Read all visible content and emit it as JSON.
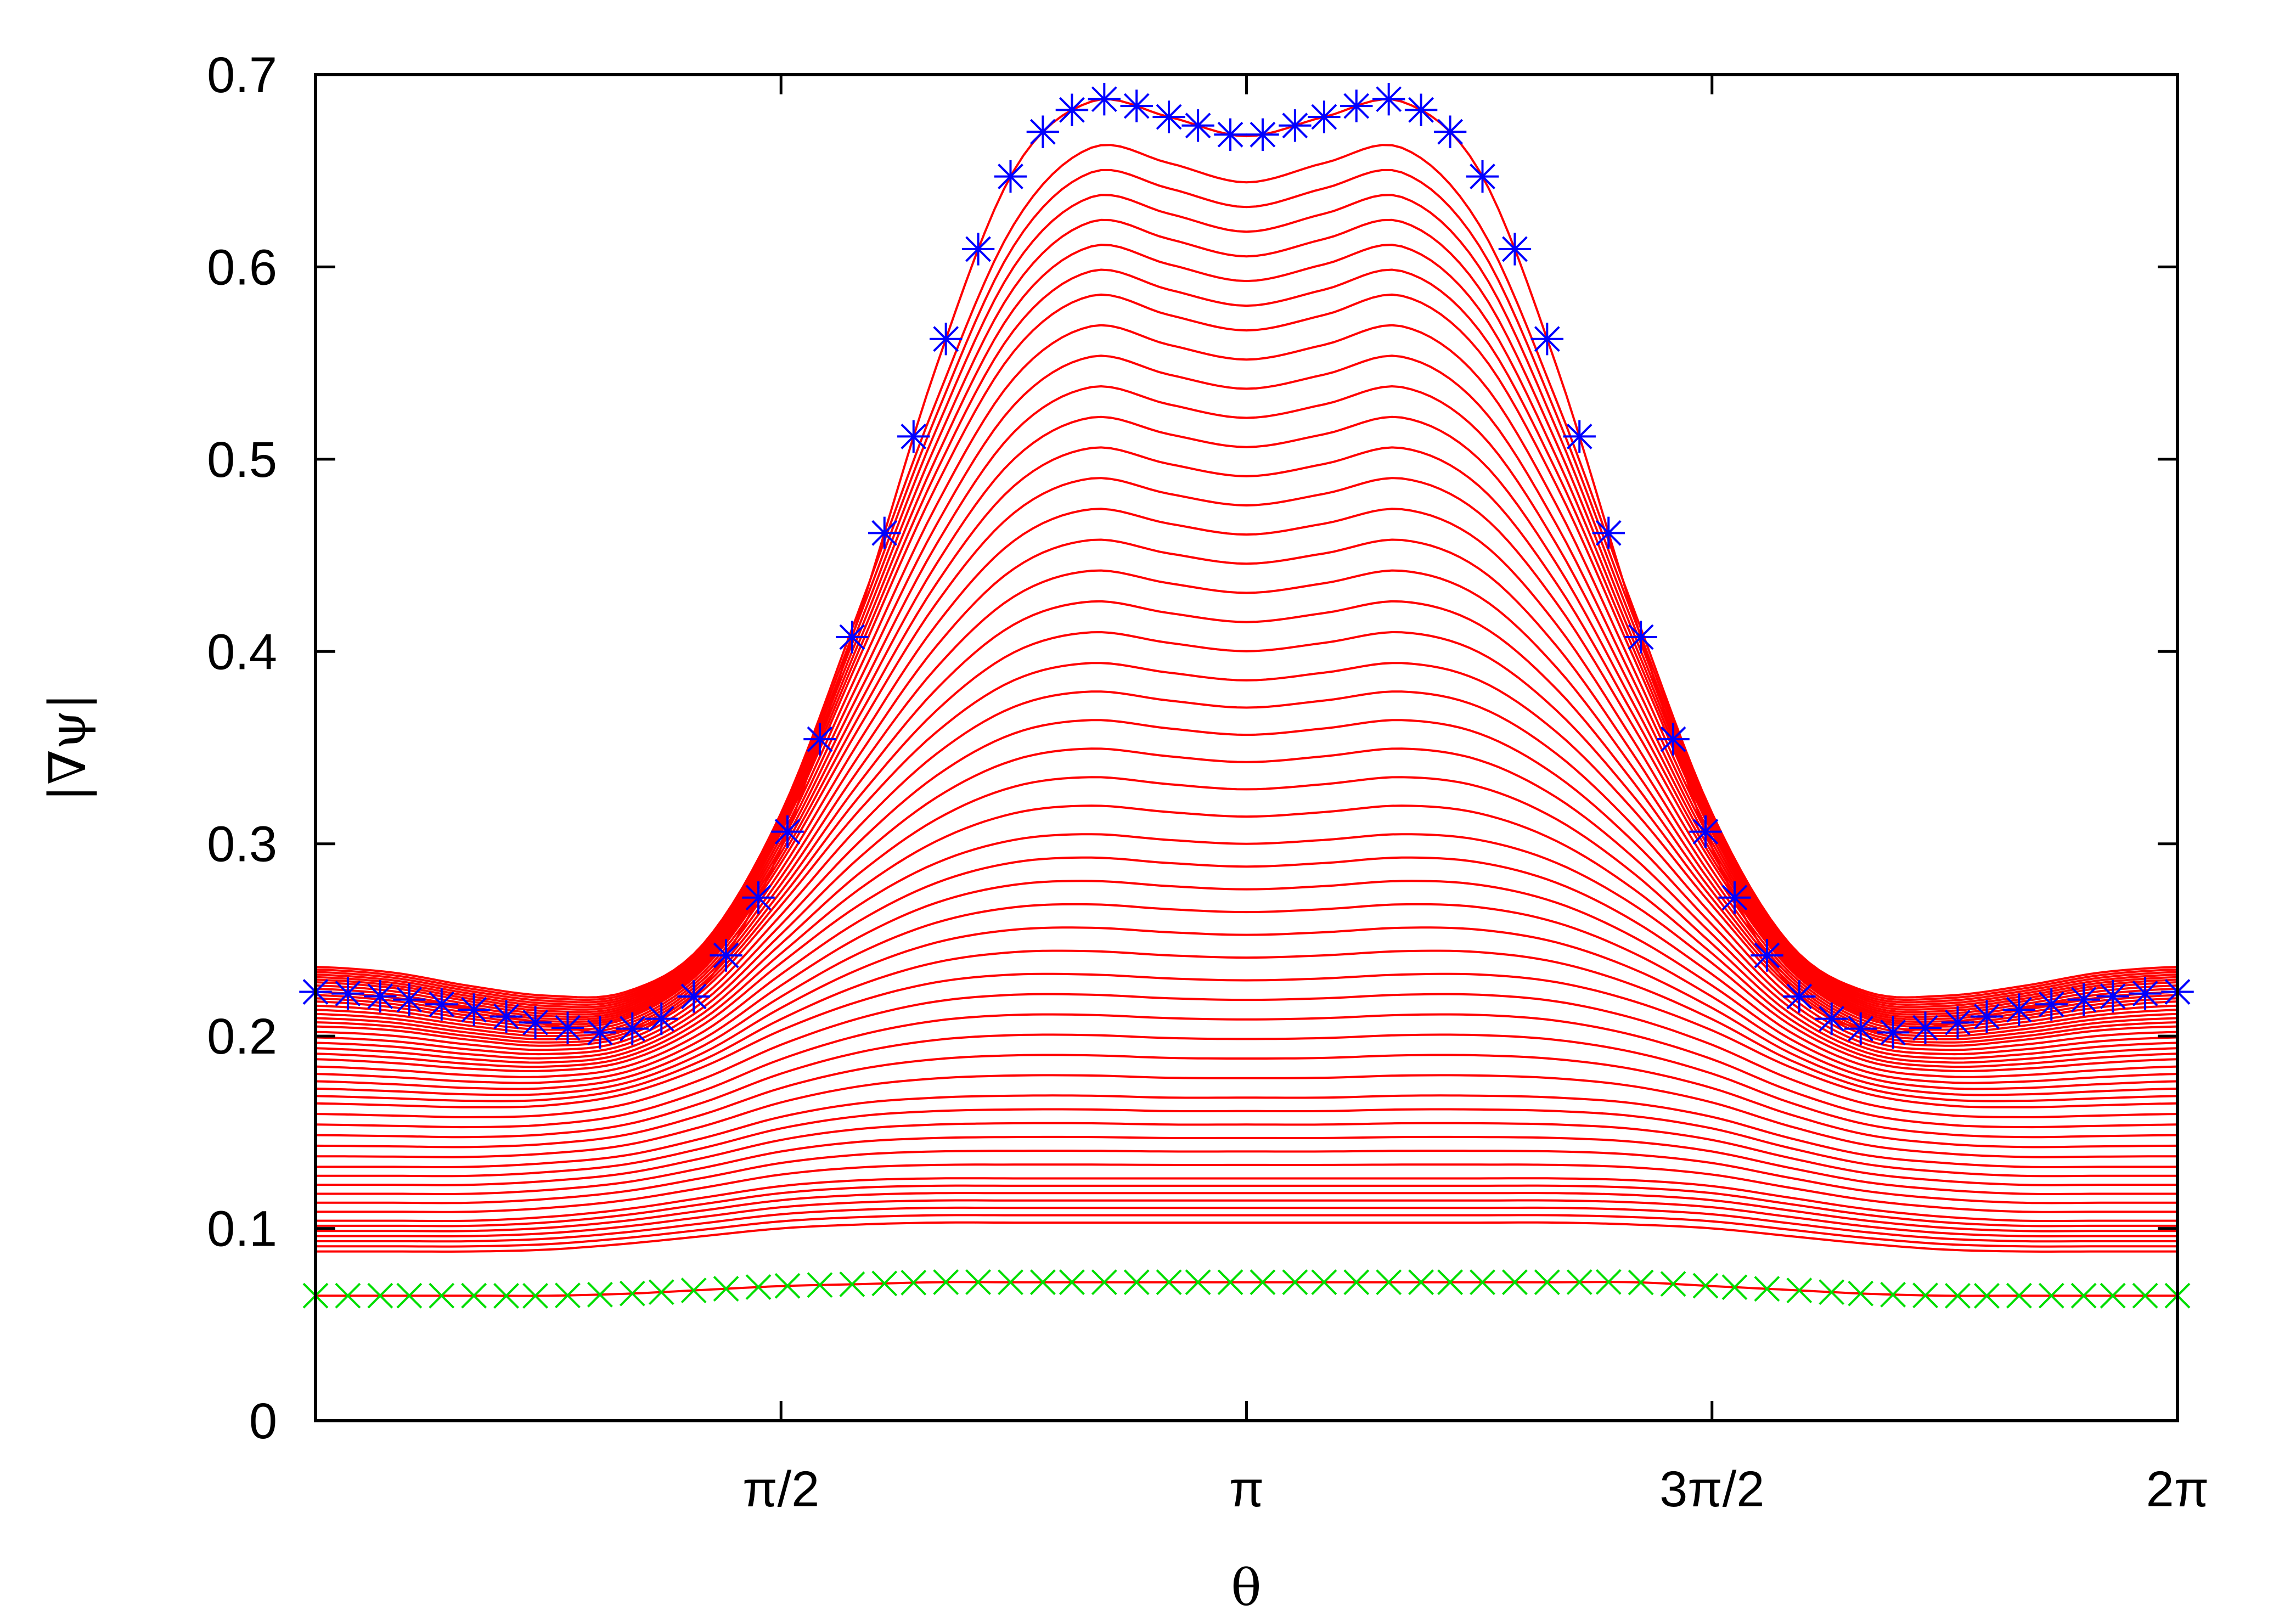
{
  "chart_data": {
    "type": "line",
    "title": "",
    "xlabel": "θ",
    "ylabel": "|∇ψ|",
    "xlim": [
      0,
      6.283185
    ],
    "ylim": [
      0,
      0.7
    ],
    "grid": false,
    "legend": "none",
    "x_ticks": [
      {
        "value": 1.570796,
        "label": "π/2"
      },
      {
        "value": 3.141593,
        "label": "π"
      },
      {
        "value": 4.712389,
        "label": "3π/2"
      },
      {
        "value": 6.283185,
        "label": "2π"
      }
    ],
    "y_ticks": [
      {
        "value": 0,
        "label": "0"
      },
      {
        "value": 0.1,
        "label": "0.1"
      },
      {
        "value": 0.2,
        "label": "0.2"
      },
      {
        "value": 0.3,
        "label": "0.3"
      },
      {
        "value": 0.4,
        "label": "0.4"
      },
      {
        "value": 0.5,
        "label": "0.5"
      },
      {
        "value": 0.6,
        "label": "0.6"
      },
      {
        "value": 0.7,
        "label": "0.7"
      }
    ],
    "x": [
      0,
      0.2618,
      0.5236,
      0.7854,
      1.0472,
      1.309,
      1.5708,
      1.8326,
      2.0944,
      2.3562,
      2.618,
      2.8798,
      3.1416,
      3.4034,
      3.6652,
      3.927,
      4.1888,
      4.4506,
      4.7124,
      4.9742,
      5.236,
      5.4978,
      5.7596,
      6.0214,
      6.2832
    ],
    "series_style": {
      "initial": {
        "color": "#00dd00",
        "marker": "x"
      },
      "intermediate": {
        "color": "#ff0000",
        "marker": "none"
      },
      "final": {
        "color": "#0000ff",
        "marker": "*"
      }
    },
    "series": [
      {
        "role": "initial",
        "values": [
          0.065,
          0.065,
          0.065,
          0.065,
          0.066,
          0.068,
          0.07,
          0.071,
          0.072,
          0.072,
          0.072,
          0.072,
          0.072,
          0.072,
          0.072,
          0.072,
          0.072,
          0.072,
          0.07,
          0.068,
          0.066,
          0.065,
          0.065,
          0.065,
          0.065
        ]
      },
      {
        "role": "intermediate",
        "values": [
          0.088,
          0.088,
          0.088,
          0.089,
          0.092,
          0.096,
          0.1,
          0.102,
          0.103,
          0.103,
          0.103,
          0.103,
          0.103,
          0.103,
          0.103,
          0.103,
          0.103,
          0.102,
          0.1,
          0.096,
          0.092,
          0.089,
          0.088,
          0.088,
          0.088
        ]
      },
      {
        "role": "intermediate",
        "values": [
          0.104,
          0.104,
          0.104,
          0.106,
          0.11,
          0.116,
          0.122,
          0.125,
          0.126,
          0.126,
          0.126,
          0.126,
          0.126,
          0.126,
          0.126,
          0.126,
          0.126,
          0.125,
          0.122,
          0.116,
          0.11,
          0.106,
          0.104,
          0.104,
          0.104
        ]
      },
      {
        "role": "intermediate",
        "values": [
          0.132,
          0.132,
          0.132,
          0.134,
          0.138,
          0.147,
          0.158,
          0.165,
          0.168,
          0.169,
          0.169,
          0.168,
          0.168,
          0.168,
          0.169,
          0.169,
          0.168,
          0.165,
          0.158,
          0.147,
          0.138,
          0.134,
          0.132,
          0.132,
          0.132
        ]
      },
      {
        "role": "intermediate",
        "values": [
          0.165,
          0.164,
          0.163,
          0.164,
          0.17,
          0.184,
          0.203,
          0.218,
          0.228,
          0.232,
          0.232,
          0.23,
          0.229,
          0.23,
          0.232,
          0.232,
          0.228,
          0.218,
          0.203,
          0.184,
          0.17,
          0.164,
          0.163,
          0.164,
          0.165
        ]
      },
      {
        "role": "intermediate",
        "values": [
          0.188,
          0.186,
          0.183,
          0.182,
          0.187,
          0.206,
          0.238,
          0.268,
          0.29,
          0.302,
          0.305,
          0.302,
          0.3,
          0.302,
          0.305,
          0.302,
          0.29,
          0.268,
          0.238,
          0.206,
          0.187,
          0.182,
          0.183,
          0.186,
          0.188
        ]
      },
      {
        "role": "intermediate",
        "values": [
          0.205,
          0.203,
          0.198,
          0.195,
          0.2,
          0.224,
          0.268,
          0.317,
          0.358,
          0.385,
          0.394,
          0.389,
          0.385,
          0.389,
          0.394,
          0.385,
          0.358,
          0.317,
          0.268,
          0.224,
          0.2,
          0.195,
          0.198,
          0.203,
          0.205
        ]
      },
      {
        "role": "intermediate",
        "values": [
          0.218,
          0.215,
          0.209,
          0.205,
          0.209,
          0.235,
          0.29,
          0.36,
          0.425,
          0.472,
          0.49,
          0.482,
          0.476,
          0.482,
          0.49,
          0.472,
          0.425,
          0.36,
          0.29,
          0.235,
          0.209,
          0.205,
          0.209,
          0.215,
          0.218
        ]
      },
      {
        "role": "intermediate",
        "values": [
          0.228,
          0.225,
          0.218,
          0.213,
          0.216,
          0.243,
          0.306,
          0.396,
          0.486,
          0.556,
          0.585,
          0.575,
          0.567,
          0.575,
          0.585,
          0.556,
          0.486,
          0.396,
          0.306,
          0.243,
          0.216,
          0.213,
          0.218,
          0.225,
          0.228
        ]
      },
      {
        "role": "intermediate",
        "values": [
          0.236,
          0.233,
          0.226,
          0.221,
          0.223,
          0.248,
          0.316,
          0.421,
          0.53,
          0.622,
          0.662,
          0.654,
          0.644,
          0.654,
          0.662,
          0.622,
          0.53,
          0.421,
          0.316,
          0.248,
          0.223,
          0.221,
          0.226,
          0.233,
          0.236
        ]
      },
      {
        "role": "final",
        "values": [
          0.223,
          0.22,
          0.214,
          0.206,
          0.203,
          0.226,
          0.298,
          0.418,
          0.548,
          0.65,
          0.686,
          0.678,
          0.668,
          0.678,
          0.686,
          0.65,
          0.548,
          0.418,
          0.298,
          0.226,
          0.203,
          0.206,
          0.214,
          0.22,
          0.223
        ]
      }
    ]
  }
}
